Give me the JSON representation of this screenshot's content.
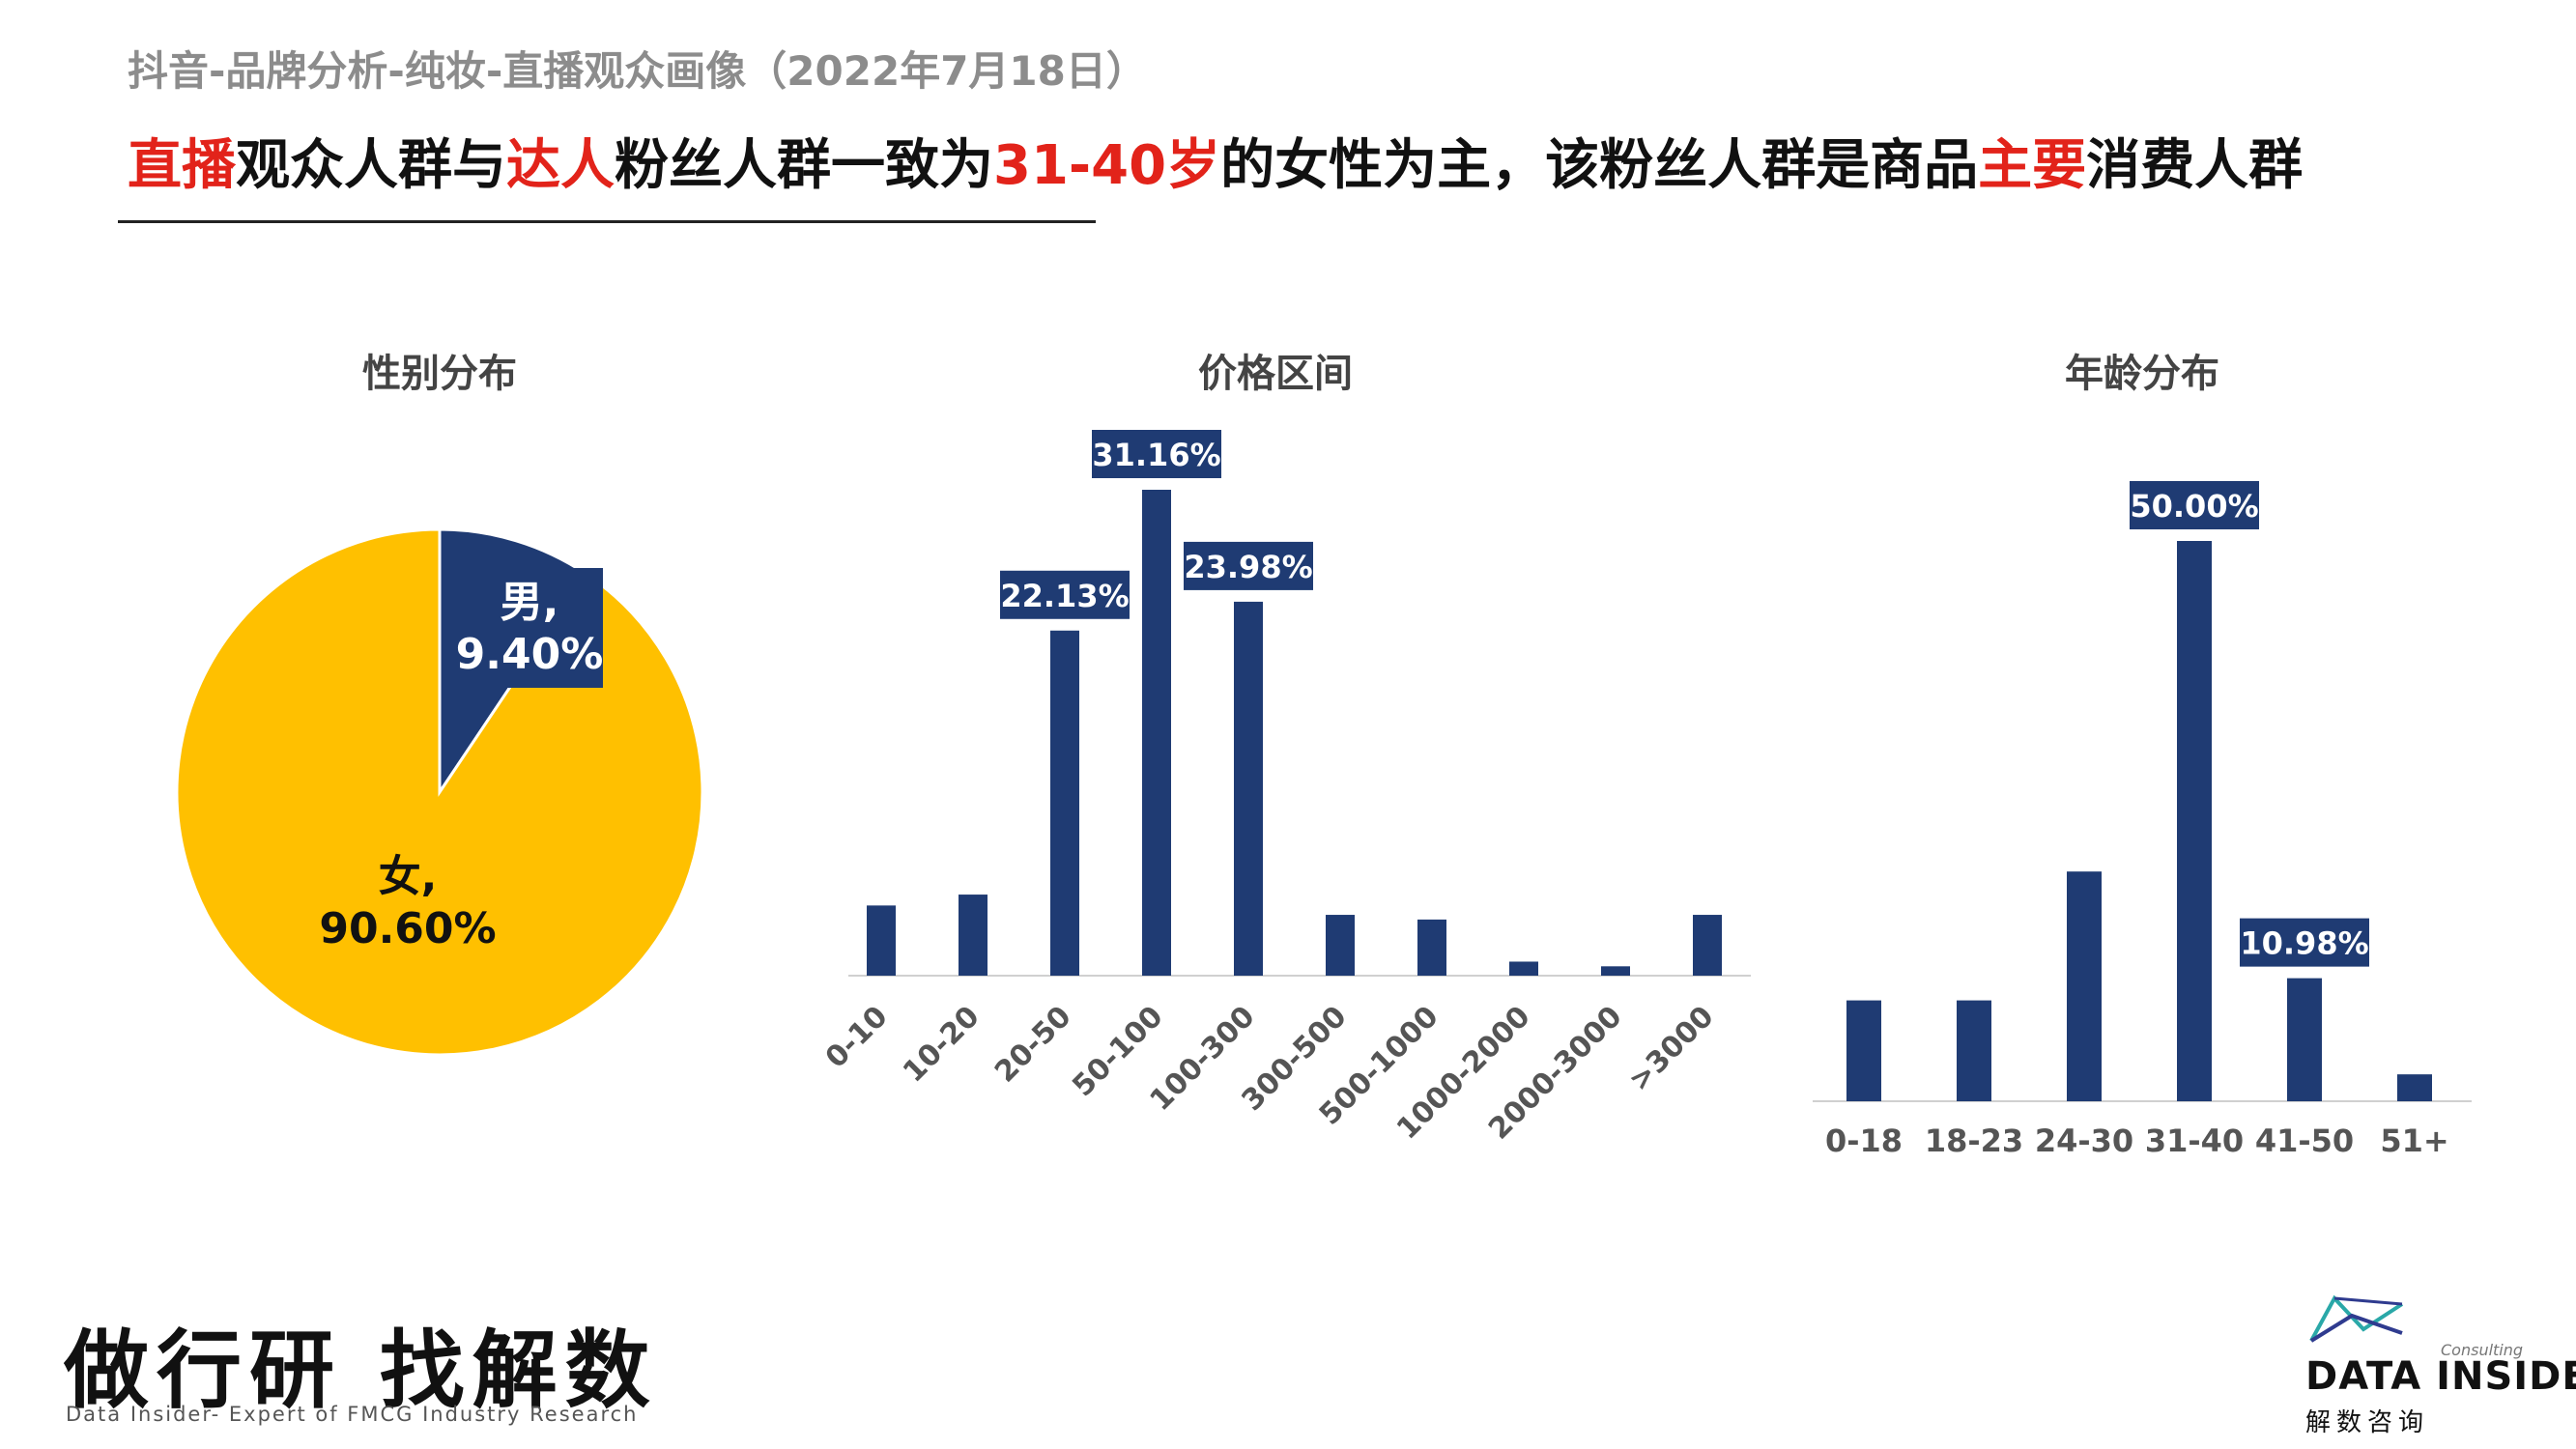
{
  "header": {
    "subtitle": "抖音-品牌分析-纯妆-直播观众画像（2022年7月18日）",
    "headline_parts": [
      {
        "text": "直播",
        "red": true
      },
      {
        "text": "观众人群与",
        "red": false
      },
      {
        "text": "达人",
        "red": true
      },
      {
        "text": "粉丝人群一致为",
        "red": false
      },
      {
        "text": "31-40岁",
        "red": true
      },
      {
        "text": "的女性为主，该粉丝人群是商品",
        "red": false
      },
      {
        "text": "主要",
        "red": true
      },
      {
        "text": "消费人群",
        "red": false
      }
    ]
  },
  "colors": {
    "navy": "#1f3b73",
    "gold": "#ffc000",
    "red": "#e2231a"
  },
  "chart_data": [
    {
      "type": "pie",
      "title": "性别分布",
      "slices": [
        {
          "label": "男",
          "value": 9.4,
          "display": "9.40%",
          "color": "#1f3b73"
        },
        {
          "label": "女",
          "value": 90.6,
          "display": "90.60%",
          "color": "#ffc000"
        }
      ]
    },
    {
      "type": "bar",
      "title": "价格区间",
      "categories": [
        "0-10",
        "10-20",
        "20-50",
        "50-100",
        "100-300",
        "300-500",
        "500-1000",
        "1000-2000",
        "2000-3000",
        ">3000"
      ],
      "values": [
        4.5,
        5.2,
        22.13,
        31.16,
        23.98,
        3.9,
        3.6,
        0.9,
        0.6,
        3.9
      ],
      "labels": [
        "",
        "",
        "22.13%",
        "31.16%",
        "23.98%",
        "",
        "",
        "",
        "",
        ""
      ],
      "ylim": [
        0,
        31.16
      ]
    },
    {
      "type": "bar",
      "title": "年龄分布",
      "categories": [
        "0-18",
        "18-23",
        "24-30",
        "31-40",
        "41-50",
        "51+"
      ],
      "values": [
        9.0,
        9.0,
        20.5,
        50.0,
        10.98,
        2.4
      ],
      "labels": [
        "",
        "",
        "",
        "50.00%",
        "10.98%",
        ""
      ],
      "ylim": [
        0,
        50.0
      ]
    }
  ],
  "footer": {
    "slogan": "做行研 找解数",
    "tagline": "Data Insider- Expert of FMCG Industry Research",
    "logo_name": "DATA INSIDER",
    "logo_sub": "Consulting",
    "logo_cn": "解数咨询"
  }
}
